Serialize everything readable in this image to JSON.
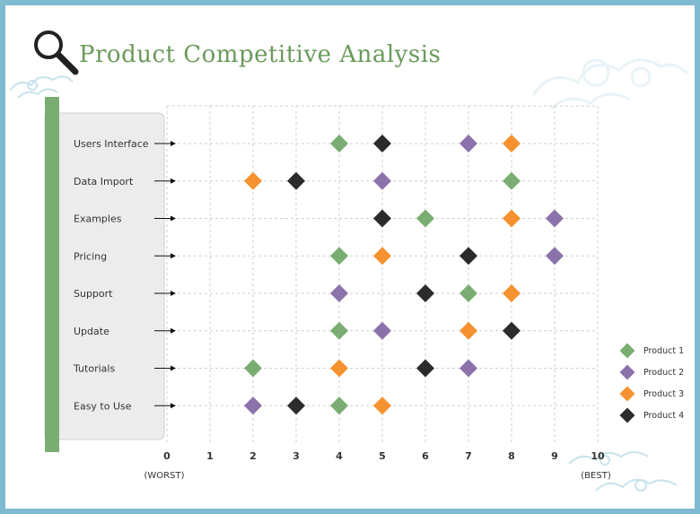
{
  "title": "Product Competitive Analysis",
  "chart_data": {
    "type": "scatter",
    "categories": [
      "Users Interface",
      "Data Import",
      "Examples",
      "Pricing",
      "Support",
      "Update",
      "Tutorials",
      "Easy to Use"
    ],
    "xlim": [
      0,
      10
    ],
    "xticks": [
      "0",
      "1",
      "2",
      "3",
      "4",
      "5",
      "6",
      "7",
      "8",
      "9",
      "10"
    ],
    "x_end_labels": {
      "worst": "(WORST)",
      "best": "(BEST)"
    },
    "grid": true,
    "legend_position": "right",
    "series": [
      {
        "name": "Product 1",
        "color": "#7aad72",
        "values": [
          4,
          8,
          6,
          4,
          7,
          4,
          2,
          4
        ]
      },
      {
        "name": "Product 2",
        "color": "#8c72aa",
        "values": [
          7,
          5,
          9,
          9,
          4,
          5,
          7,
          2
        ]
      },
      {
        "name": "Product 3",
        "color": "#f5922f",
        "values": [
          8,
          2,
          8,
          5,
          8,
          7,
          4,
          5
        ]
      },
      {
        "name": "Product 4",
        "color": "#2b2b2b",
        "values": [
          5,
          3,
          5,
          7,
          6,
          8,
          6,
          3
        ]
      }
    ]
  }
}
